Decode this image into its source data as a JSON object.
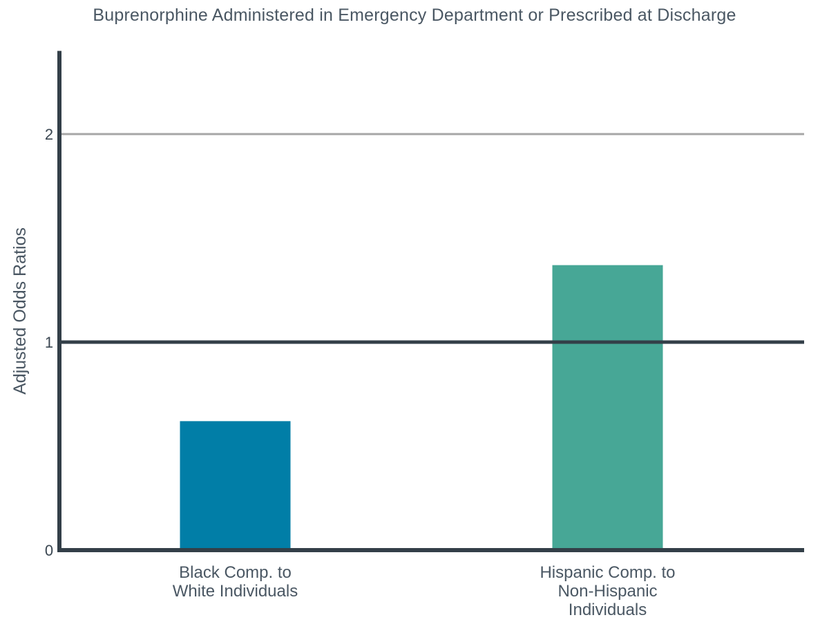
{
  "chart_data": {
    "type": "bar",
    "title": "Buprenorphine Administered in Emergency Department or Prescribed at Discharge",
    "xlabel": "",
    "ylabel": "Adjusted Odds Ratios",
    "categories": [
      [
        "Black Comp. to",
        "White Individuals"
      ],
      [
        "Hispanic Comp. to",
        "Non-Hispanic",
        "Individuals"
      ]
    ],
    "values": [
      0.62,
      1.37
    ],
    "bar_colors": [
      "#017ea7",
      "#47a796"
    ],
    "ylim": [
      0,
      2.4
    ],
    "yticks": [
      0,
      1,
      2
    ],
    "reference_line": 1,
    "grid": "horizontal at 2",
    "legend": "none",
    "colors": {
      "axis": "#333f48",
      "grid": "#a6a6a6",
      "text": "#4a5763"
    }
  }
}
